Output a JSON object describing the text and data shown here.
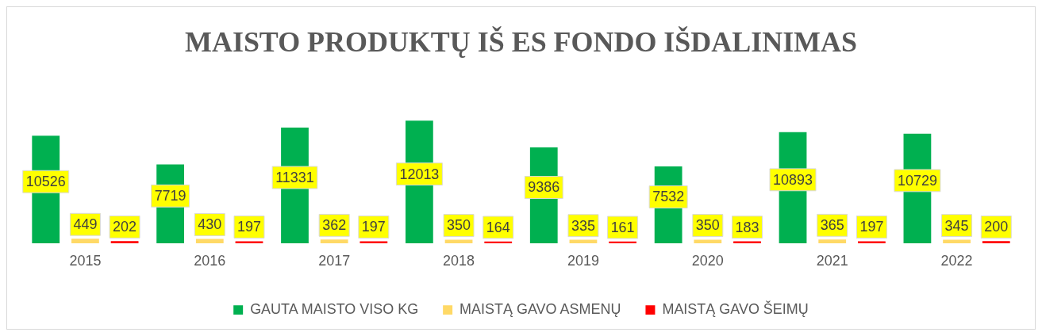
{
  "chart_data": {
    "type": "bar",
    "title": "MAISTO PRODUKTŲ IŠ ES FONDO IŠDALINIMAS",
    "categories": [
      "2015",
      "2016",
      "2017",
      "2018",
      "2019",
      "2020",
      "2021",
      "2022"
    ],
    "series": [
      {
        "name": "GAUTA MAISTO VISO KG",
        "color": "#00b050",
        "values": [
          10526,
          7719,
          11331,
          12013,
          9386,
          7532,
          10893,
          10729
        ]
      },
      {
        "name": "MAISTĄ GAVO ASMENŲ",
        "color": "#ffd966",
        "values": [
          449,
          430,
          362,
          350,
          335,
          350,
          365,
          345
        ]
      },
      {
        "name": "MAISTĄ GAVO ŠEIMŲ",
        "color": "#ff0000",
        "values": [
          202,
          197,
          197,
          164,
          161,
          183,
          197,
          200
        ]
      }
    ],
    "data_labels": true,
    "legend": "bottom",
    "grid": false
  }
}
